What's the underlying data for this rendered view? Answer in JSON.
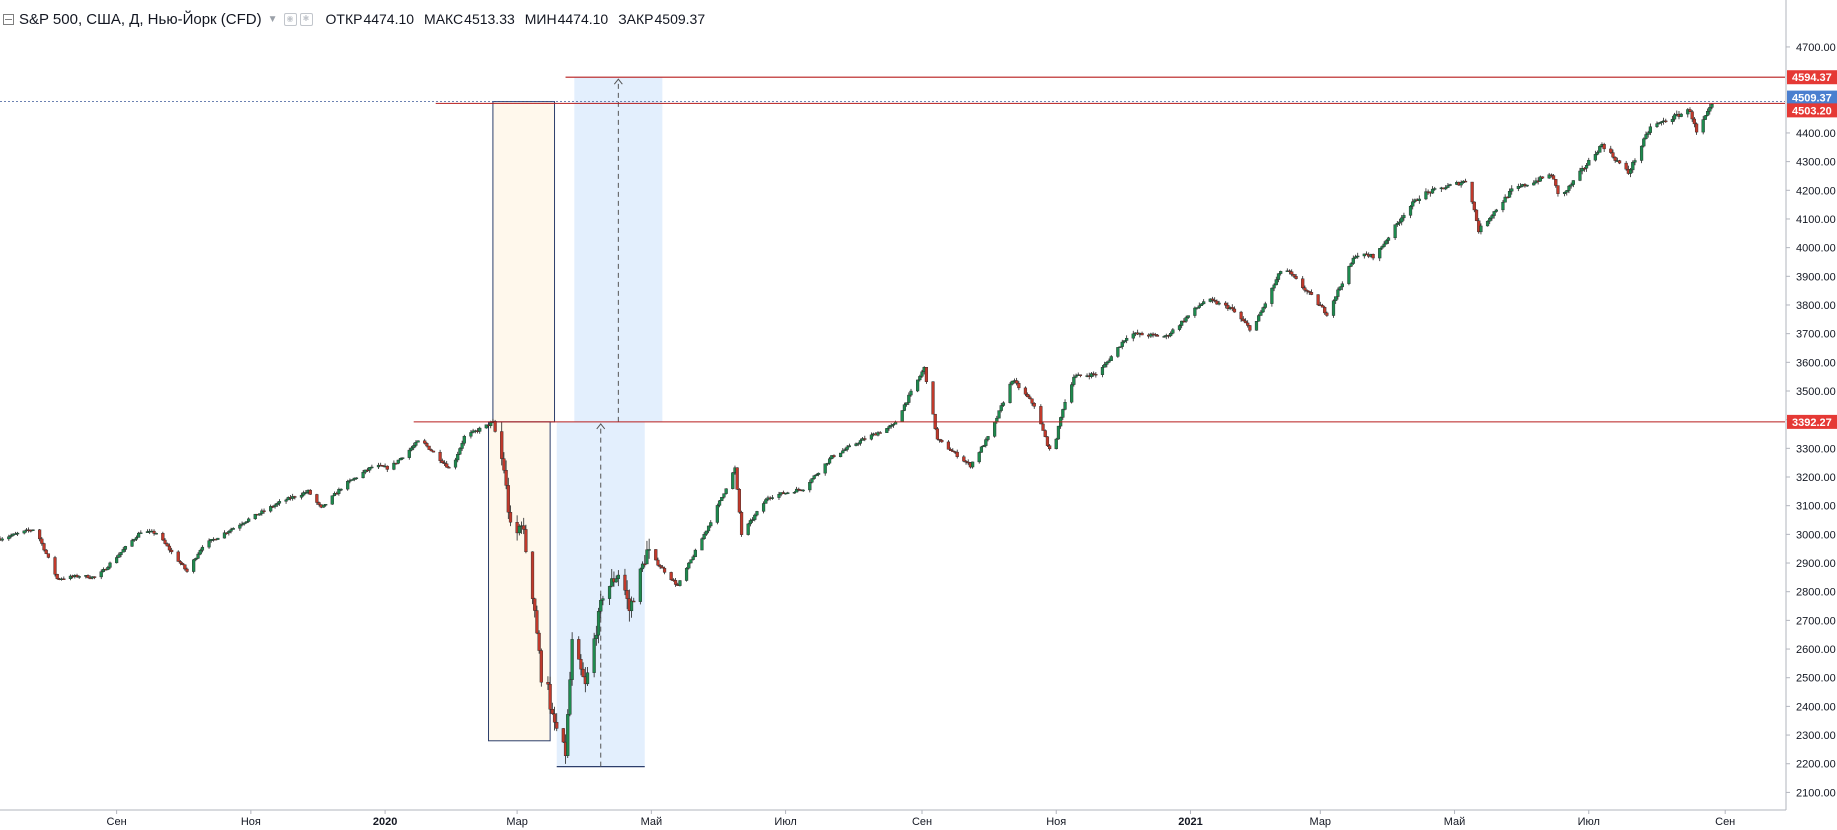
{
  "legend": {
    "title": "S&P 500, США, Д, Нью-Йорк (CFD)",
    "open_label": "ОТКР",
    "open_value": "4474.10",
    "high_label": "МАКС",
    "high_value": "4513.33",
    "low_label": "МИН",
    "low_value": "4474.10",
    "close_label": "ЗАКР",
    "close_value": "4509.37"
  },
  "colors": {
    "up": "#26a69a",
    "up_fill": "#1e8a4e",
    "down": "#c0392b",
    "level_line": "#b71c1c",
    "level_label": "#e53935",
    "last_price_label": "#4a7fcf",
    "range_yellow": "#fff8ec",
    "range_blue": "#e3effd",
    "box_border": "#2c3e6b"
  },
  "chart_data": {
    "type": "candlestick",
    "instrument": "S&P 500, США, Д, Нью-Йорк (CFD)",
    "y_ticks": [
      "2100.00",
      "2200.00",
      "2300.00",
      "2400.00",
      "2500.00",
      "2600.00",
      "2700.00",
      "2800.00",
      "2900.00",
      "3000.00",
      "3100.00",
      "3200.00",
      "3300.00",
      "3400.00",
      "3500.00",
      "3600.00",
      "3700.00",
      "3800.00",
      "3900.00",
      "4000.00",
      "4100.00",
      "4200.00",
      "4300.00",
      "4400.00",
      "4700.00"
    ],
    "x_ticks": [
      {
        "label": "Сен",
        "bold": false
      },
      {
        "label": "Ноя",
        "bold": false
      },
      {
        "label": "2020",
        "bold": true
      },
      {
        "label": "Мар",
        "bold": false
      },
      {
        "label": "Май",
        "bold": false
      },
      {
        "label": "Июл",
        "bold": false
      },
      {
        "label": "Сен",
        "bold": false
      },
      {
        "label": "Ноя",
        "bold": false
      },
      {
        "label": "2021",
        "bold": true
      },
      {
        "label": "Мар",
        "bold": false
      },
      {
        "label": "Май",
        "bold": false
      },
      {
        "label": "Июл",
        "bold": false
      },
      {
        "label": "Сен",
        "bold": false
      }
    ],
    "x_tick_dates": [
      "2019-09-01",
      "2019-11-01",
      "2020-01-01",
      "2020-03-01",
      "2020-05-01",
      "2020-07-01",
      "2020-09-01",
      "2020-11-01",
      "2021-01-01",
      "2021-03-01",
      "2021-05-01",
      "2021-07-01",
      "2021-09-01"
    ],
    "x_range": [
      "2019-07-10",
      "2021-09-10"
    ],
    "y_range": [
      2070,
      4780
    ],
    "price_labels": [
      {
        "text": "4594.37",
        "value": 4594.37,
        "kind": "level"
      },
      {
        "text": "4509.37",
        "value": 4509.37,
        "kind": "last"
      },
      {
        "text": "4503.20",
        "value": 4503.2,
        "kind": "level"
      },
      {
        "text": "3392.27",
        "value": 3392.27,
        "kind": "level"
      }
    ],
    "horizontal_levels": [
      {
        "value": 4594.37,
        "from": "2020-03-23"
      },
      {
        "value": 4503.2,
        "from": "2020-01-24"
      },
      {
        "value": 3392.27,
        "from": "2020-01-14"
      }
    ],
    "last_price_line": {
      "value": 4509.37
    },
    "drawings": [
      {
        "kind": "box",
        "from": "2020-02-19",
        "to": "2020-03-18",
        "top": 4509.37,
        "bottom": 3392.27,
        "fill": "yellow"
      },
      {
        "kind": "box",
        "from": "2020-03-27",
        "to": "2020-05-06",
        "top": 4594.37,
        "bottom": 3392.27,
        "fill": "blue",
        "arrow_date": "2020-04-16"
      },
      {
        "kind": "box",
        "from": "2020-02-17",
        "to": "2020-03-16",
        "top": 3392.27,
        "bottom": 2280,
        "fill": "yellow"
      },
      {
        "kind": "box",
        "from": "2020-03-19",
        "to": "2020-04-28",
        "top": 3392.27,
        "bottom": 2190,
        "fill": "blue",
        "arrow_date": "2020-04-08"
      }
    ],
    "series_keypoints": [
      [
        "2019-07-10",
        2985
      ],
      [
        "2019-07-26",
        3020
      ],
      [
        "2019-08-05",
        2845
      ],
      [
        "2019-08-15",
        2855
      ],
      [
        "2019-08-23",
        2850
      ],
      [
        "2019-09-12",
        3010
      ],
      [
        "2019-09-19",
        3005
      ],
      [
        "2019-10-03",
        2870
      ],
      [
        "2019-10-10",
        2960
      ],
      [
        "2019-10-28",
        3040
      ],
      [
        "2019-11-15",
        3115
      ],
      [
        "2019-11-27",
        3150
      ],
      [
        "2019-12-03",
        3090
      ],
      [
        "2019-12-13",
        3170
      ],
      [
        "2019-12-27",
        3240
      ],
      [
        "2020-01-03",
        3230
      ],
      [
        "2020-01-17",
        3330
      ],
      [
        "2020-01-31",
        3225
      ],
      [
        "2020-02-06",
        3340
      ],
      [
        "2020-02-19",
        3390
      ],
      [
        "2020-02-24",
        3230
      ],
      [
        "2020-02-28",
        2950
      ],
      [
        "2020-03-03",
        3050
      ],
      [
        "2020-03-09",
        2740
      ],
      [
        "2020-03-12",
        2500
      ],
      [
        "2020-03-13",
        2710
      ],
      [
        "2020-03-16",
        2380
      ],
      [
        "2020-03-20",
        2300
      ],
      [
        "2020-03-23",
        2235
      ],
      [
        "2020-03-26",
        2620
      ],
      [
        "2020-04-01",
        2470
      ],
      [
        "2020-04-09",
        2790
      ],
      [
        "2020-04-17",
        2875
      ],
      [
        "2020-04-21",
        2735
      ],
      [
        "2020-04-29",
        2940
      ],
      [
        "2020-05-13",
        2820
      ],
      [
        "2020-05-27",
        3030
      ],
      [
        "2020-06-08",
        3230
      ],
      [
        "2020-06-11",
        3000
      ],
      [
        "2020-06-23",
        3130
      ],
      [
        "2020-07-09",
        3160
      ],
      [
        "2020-07-22",
        3270
      ],
      [
        "2020-08-05",
        3330
      ],
      [
        "2020-08-19",
        3380
      ],
      [
        "2020-09-02",
        3580
      ],
      [
        "2020-09-08",
        3330
      ],
      [
        "2020-09-23",
        3240
      ],
      [
        "2020-10-02",
        3350
      ],
      [
        "2020-10-12",
        3540
      ],
      [
        "2020-10-22",
        3450
      ],
      [
        "2020-10-30",
        3270
      ],
      [
        "2020-11-04",
        3440
      ],
      [
        "2020-11-09",
        3550
      ],
      [
        "2020-11-20",
        3560
      ],
      [
        "2020-12-04",
        3700
      ],
      [
        "2020-12-21",
        3690
      ],
      [
        "2021-01-08",
        3820
      ],
      [
        "2021-01-19",
        3790
      ],
      [
        "2021-01-29",
        3710
      ],
      [
        "2021-02-12",
        3935
      ],
      [
        "2021-02-25",
        3830
      ],
      [
        "2021-03-04",
        3770
      ],
      [
        "2021-03-17",
        3975
      ],
      [
        "2021-03-26",
        3970
      ],
      [
        "2021-04-09",
        4130
      ],
      [
        "2021-04-16",
        4185
      ],
      [
        "2021-05-07",
        4235
      ],
      [
        "2021-05-12",
        4060
      ],
      [
        "2021-05-27",
        4200
      ],
      [
        "2021-06-14",
        4255
      ],
      [
        "2021-06-18",
        4170
      ],
      [
        "2021-07-07",
        4360
      ],
      [
        "2021-07-19",
        4260
      ],
      [
        "2021-07-29",
        4420
      ],
      [
        "2021-08-16",
        4480
      ],
      [
        "2021-08-19",
        4400
      ],
      [
        "2021-08-27",
        4509
      ]
    ]
  }
}
